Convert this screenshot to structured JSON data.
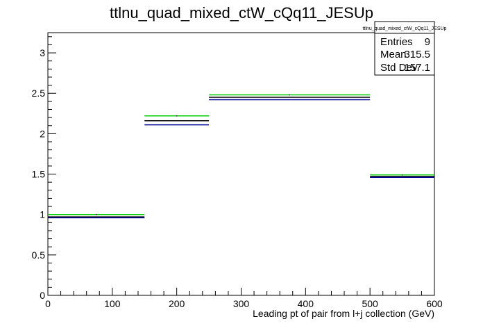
{
  "chart_data": {
    "type": "step",
    "title": "ttlnu_quad_mixed_ctW_cQq11_JESUp",
    "xlabel": "Leading pt of pair from l+j collection (GeV)",
    "ylabel": "",
    "xlim": [
      0,
      600
    ],
    "ylim": [
      0,
      3.25
    ],
    "x_ticks": [
      0,
      100,
      200,
      300,
      400,
      500,
      600
    ],
    "y_ticks": [
      0,
      0.5,
      1,
      1.5,
      2,
      2.5,
      3
    ],
    "x_tick_labels": [
      "0",
      "100",
      "200",
      "300",
      "400",
      "500",
      "600"
    ],
    "y_tick_labels": [
      "0",
      "0.5",
      "1",
      "1.5",
      "2",
      "2.5",
      "3"
    ],
    "bin_edges": [
      0,
      150,
      250,
      500,
      600
    ],
    "grid": false,
    "legend": "none",
    "series": [
      {
        "color": "#00cc00",
        "values": [
          1.0,
          2.22,
          2.48,
          1.49
        ]
      },
      {
        "color": "#000000",
        "values": [
          0.97,
          2.16,
          2.45,
          1.47
        ]
      },
      {
        "color": "#000099",
        "values": [
          0.96,
          2.11,
          2.42,
          1.46
        ]
      }
    ],
    "stats_box": {
      "name": "ttlnu_quad_mixed_ctW_cQq11_JESUp",
      "rows": [
        {
          "label": "Entries",
          "value": "9"
        },
        {
          "label": "Mean",
          "value": "315.5"
        },
        {
          "label": "Std Dev",
          "value": "157.1"
        }
      ]
    }
  }
}
